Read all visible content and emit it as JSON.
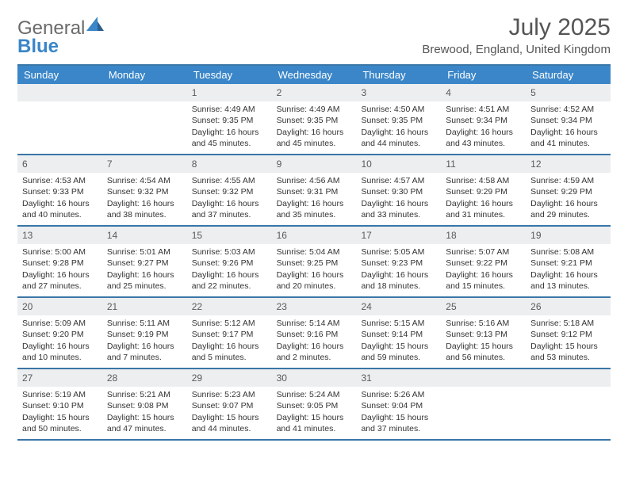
{
  "brand": {
    "general": "General",
    "blue": "Blue"
  },
  "title": "July 2025",
  "location": "Brewood, England, United Kingdom",
  "colors": {
    "header_bg": "#3a86c8",
    "border": "#3a76a8",
    "daynum_bg": "#eceef0",
    "text": "#333333",
    "title_text": "#555555"
  },
  "day_headers": [
    "Sunday",
    "Monday",
    "Tuesday",
    "Wednesday",
    "Thursday",
    "Friday",
    "Saturday"
  ],
  "weeks": [
    [
      {
        "empty": true
      },
      {
        "empty": true
      },
      {
        "n": "1",
        "sunrise": "Sunrise: 4:49 AM",
        "sunset": "Sunset: 9:35 PM",
        "day1": "Daylight: 16 hours",
        "day2": "and 45 minutes."
      },
      {
        "n": "2",
        "sunrise": "Sunrise: 4:49 AM",
        "sunset": "Sunset: 9:35 PM",
        "day1": "Daylight: 16 hours",
        "day2": "and 45 minutes."
      },
      {
        "n": "3",
        "sunrise": "Sunrise: 4:50 AM",
        "sunset": "Sunset: 9:35 PM",
        "day1": "Daylight: 16 hours",
        "day2": "and 44 minutes."
      },
      {
        "n": "4",
        "sunrise": "Sunrise: 4:51 AM",
        "sunset": "Sunset: 9:34 PM",
        "day1": "Daylight: 16 hours",
        "day2": "and 43 minutes."
      },
      {
        "n": "5",
        "sunrise": "Sunrise: 4:52 AM",
        "sunset": "Sunset: 9:34 PM",
        "day1": "Daylight: 16 hours",
        "day2": "and 41 minutes."
      }
    ],
    [
      {
        "n": "6",
        "sunrise": "Sunrise: 4:53 AM",
        "sunset": "Sunset: 9:33 PM",
        "day1": "Daylight: 16 hours",
        "day2": "and 40 minutes."
      },
      {
        "n": "7",
        "sunrise": "Sunrise: 4:54 AM",
        "sunset": "Sunset: 9:32 PM",
        "day1": "Daylight: 16 hours",
        "day2": "and 38 minutes."
      },
      {
        "n": "8",
        "sunrise": "Sunrise: 4:55 AM",
        "sunset": "Sunset: 9:32 PM",
        "day1": "Daylight: 16 hours",
        "day2": "and 37 minutes."
      },
      {
        "n": "9",
        "sunrise": "Sunrise: 4:56 AM",
        "sunset": "Sunset: 9:31 PM",
        "day1": "Daylight: 16 hours",
        "day2": "and 35 minutes."
      },
      {
        "n": "10",
        "sunrise": "Sunrise: 4:57 AM",
        "sunset": "Sunset: 9:30 PM",
        "day1": "Daylight: 16 hours",
        "day2": "and 33 minutes."
      },
      {
        "n": "11",
        "sunrise": "Sunrise: 4:58 AM",
        "sunset": "Sunset: 9:29 PM",
        "day1": "Daylight: 16 hours",
        "day2": "and 31 minutes."
      },
      {
        "n": "12",
        "sunrise": "Sunrise: 4:59 AM",
        "sunset": "Sunset: 9:29 PM",
        "day1": "Daylight: 16 hours",
        "day2": "and 29 minutes."
      }
    ],
    [
      {
        "n": "13",
        "sunrise": "Sunrise: 5:00 AM",
        "sunset": "Sunset: 9:28 PM",
        "day1": "Daylight: 16 hours",
        "day2": "and 27 minutes."
      },
      {
        "n": "14",
        "sunrise": "Sunrise: 5:01 AM",
        "sunset": "Sunset: 9:27 PM",
        "day1": "Daylight: 16 hours",
        "day2": "and 25 minutes."
      },
      {
        "n": "15",
        "sunrise": "Sunrise: 5:03 AM",
        "sunset": "Sunset: 9:26 PM",
        "day1": "Daylight: 16 hours",
        "day2": "and 22 minutes."
      },
      {
        "n": "16",
        "sunrise": "Sunrise: 5:04 AM",
        "sunset": "Sunset: 9:25 PM",
        "day1": "Daylight: 16 hours",
        "day2": "and 20 minutes."
      },
      {
        "n": "17",
        "sunrise": "Sunrise: 5:05 AM",
        "sunset": "Sunset: 9:23 PM",
        "day1": "Daylight: 16 hours",
        "day2": "and 18 minutes."
      },
      {
        "n": "18",
        "sunrise": "Sunrise: 5:07 AM",
        "sunset": "Sunset: 9:22 PM",
        "day1": "Daylight: 16 hours",
        "day2": "and 15 minutes."
      },
      {
        "n": "19",
        "sunrise": "Sunrise: 5:08 AM",
        "sunset": "Sunset: 9:21 PM",
        "day1": "Daylight: 16 hours",
        "day2": "and 13 minutes."
      }
    ],
    [
      {
        "n": "20",
        "sunrise": "Sunrise: 5:09 AM",
        "sunset": "Sunset: 9:20 PM",
        "day1": "Daylight: 16 hours",
        "day2": "and 10 minutes."
      },
      {
        "n": "21",
        "sunrise": "Sunrise: 5:11 AM",
        "sunset": "Sunset: 9:19 PM",
        "day1": "Daylight: 16 hours",
        "day2": "and 7 minutes."
      },
      {
        "n": "22",
        "sunrise": "Sunrise: 5:12 AM",
        "sunset": "Sunset: 9:17 PM",
        "day1": "Daylight: 16 hours",
        "day2": "and 5 minutes."
      },
      {
        "n": "23",
        "sunrise": "Sunrise: 5:14 AM",
        "sunset": "Sunset: 9:16 PM",
        "day1": "Daylight: 16 hours",
        "day2": "and 2 minutes."
      },
      {
        "n": "24",
        "sunrise": "Sunrise: 5:15 AM",
        "sunset": "Sunset: 9:14 PM",
        "day1": "Daylight: 15 hours",
        "day2": "and 59 minutes."
      },
      {
        "n": "25",
        "sunrise": "Sunrise: 5:16 AM",
        "sunset": "Sunset: 9:13 PM",
        "day1": "Daylight: 15 hours",
        "day2": "and 56 minutes."
      },
      {
        "n": "26",
        "sunrise": "Sunrise: 5:18 AM",
        "sunset": "Sunset: 9:12 PM",
        "day1": "Daylight: 15 hours",
        "day2": "and 53 minutes."
      }
    ],
    [
      {
        "n": "27",
        "sunrise": "Sunrise: 5:19 AM",
        "sunset": "Sunset: 9:10 PM",
        "day1": "Daylight: 15 hours",
        "day2": "and 50 minutes."
      },
      {
        "n": "28",
        "sunrise": "Sunrise: 5:21 AM",
        "sunset": "Sunset: 9:08 PM",
        "day1": "Daylight: 15 hours",
        "day2": "and 47 minutes."
      },
      {
        "n": "29",
        "sunrise": "Sunrise: 5:23 AM",
        "sunset": "Sunset: 9:07 PM",
        "day1": "Daylight: 15 hours",
        "day2": "and 44 minutes."
      },
      {
        "n": "30",
        "sunrise": "Sunrise: 5:24 AM",
        "sunset": "Sunset: 9:05 PM",
        "day1": "Daylight: 15 hours",
        "day2": "and 41 minutes."
      },
      {
        "n": "31",
        "sunrise": "Sunrise: 5:26 AM",
        "sunset": "Sunset: 9:04 PM",
        "day1": "Daylight: 15 hours",
        "day2": "and 37 minutes."
      },
      {
        "empty": true
      },
      {
        "empty": true
      }
    ]
  ]
}
